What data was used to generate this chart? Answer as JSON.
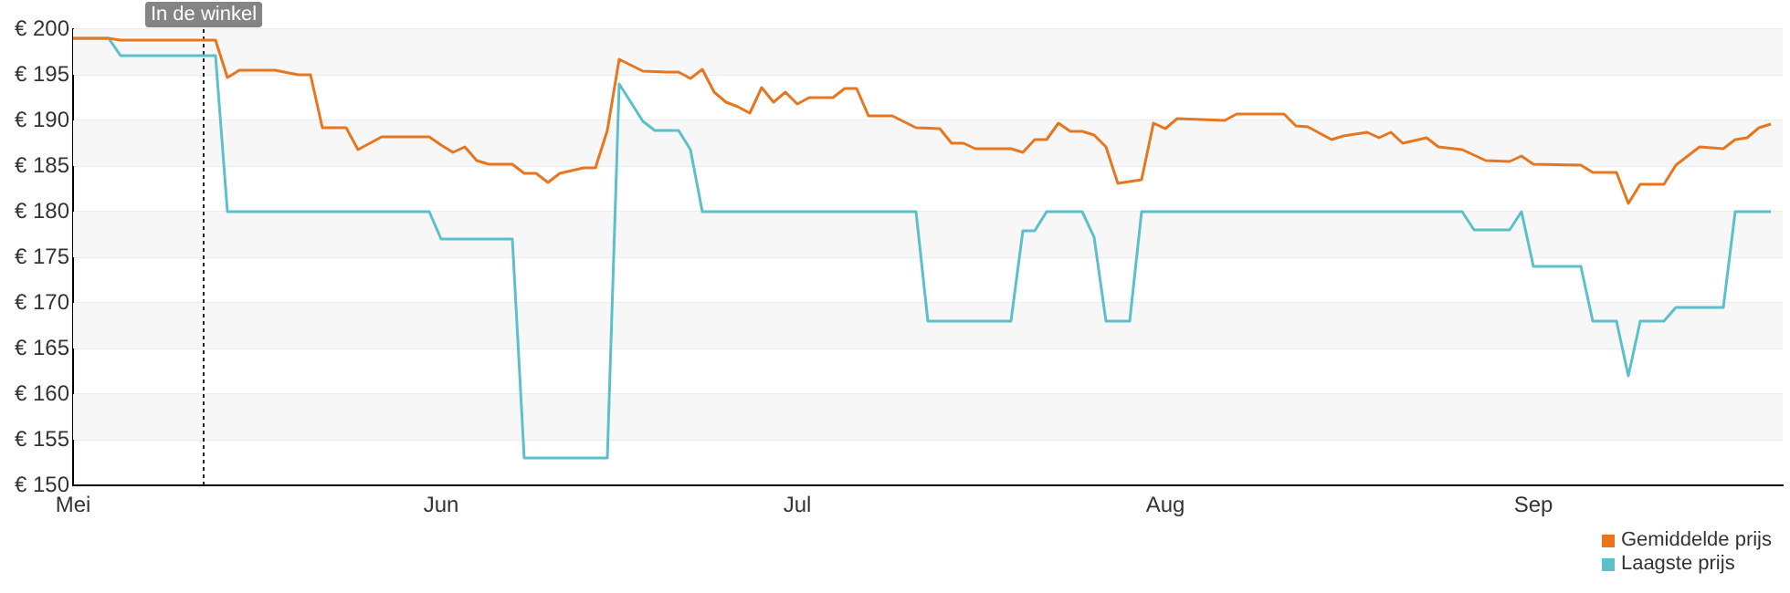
{
  "chart_data": {
    "type": "line",
    "x": [
      "--05-01",
      "--05-04",
      "--05-05",
      "--05-13",
      "--05-14",
      "--05-15",
      "--05-18",
      "--05-20",
      "--05-21",
      "--05-22",
      "--05-24",
      "--05-25",
      "--05-27",
      "--05-31",
      "--06-01",
      "--06-02",
      "--06-03",
      "--06-04",
      "--06-05",
      "--06-07",
      "--06-08",
      "--06-09",
      "--06-10",
      "--06-11",
      "--06-12",
      "--06-13",
      "--06-14",
      "--06-15",
      "--06-16",
      "--06-18",
      "--06-20",
      "--06-21",
      "--06-22",
      "--06-23",
      "--06-24",
      "--06-25",
      "--06-26",
      "--06-27",
      "--06-28",
      "--06-29",
      "--06-30",
      "--07-01",
      "--07-02",
      "--07-04",
      "--07-05",
      "--07-06",
      "--07-07",
      "--07-09",
      "--07-11",
      "--07-13",
      "--07-14",
      "--07-15",
      "--07-16",
      "--07-19",
      "--07-20",
      "--07-21",
      "--07-22",
      "--07-23",
      "--07-24",
      "--07-25",
      "--07-26",
      "--07-27",
      "--07-28",
      "--07-30",
      "--07-31",
      "--08-01",
      "--08-02",
      "--08-06",
      "--08-07",
      "--08-11",
      "--08-12",
      "--08-13",
      "--08-15",
      "--08-16",
      "--08-18",
      "--08-19",
      "--08-20",
      "--08-21",
      "--08-23",
      "--08-24",
      "--08-26",
      "--08-28",
      "--08-30",
      "--08-31",
      "--09-01",
      "--09-05",
      "--09-06",
      "--09-08",
      "--09-09",
      "--09-10",
      "--09-12",
      "--09-13",
      "--09-15",
      "--09-17",
      "--09-18",
      "--09-19",
      "--09-20",
      "--09-21"
    ],
    "series": [
      {
        "name": "Gemiddelde prijs",
        "color": "#e8761f",
        "values": [
          199,
          199,
          198.8,
          198.8,
          194.7,
          195.5,
          195.5,
          195,
          195,
          189.2,
          189.2,
          186.8,
          188.2,
          188.2,
          187.3,
          186.5,
          187.1,
          185.6,
          185.2,
          185.2,
          184.2,
          184.2,
          183.2,
          184.2,
          184.5,
          184.8,
          184.8,
          188.9,
          196.7,
          195.4,
          195.3,
          195.3,
          194.6,
          195.6,
          193.1,
          192,
          191.5,
          190.8,
          193.6,
          192,
          193.1,
          191.8,
          192.5,
          192.5,
          193.5,
          193.5,
          190.5,
          190.5,
          189.2,
          189.1,
          187.5,
          187.5,
          186.9,
          186.9,
          186.5,
          187.9,
          187.9,
          189.7,
          188.8,
          188.8,
          188.4,
          187.1,
          183.1,
          183.5,
          189.7,
          189.1,
          190.2,
          190,
          190.7,
          190.7,
          189.4,
          189.3,
          187.9,
          188.3,
          188.7,
          188.1,
          188.7,
          187.5,
          188.1,
          187.1,
          186.8,
          185.6,
          185.5,
          186.1,
          185.2,
          185.1,
          184.3,
          184.3,
          180.9,
          183,
          183,
          185.1,
          187.1,
          186.9,
          187.9,
          188.1,
          189.2,
          189.6
        ]
      },
      {
        "name": "Laagste prijs",
        "color": "#5bc0c9",
        "x": [
          "--05-01",
          "--05-04",
          "--05-05",
          "--05-13",
          "--05-14",
          "--05-31",
          "--06-01",
          "--06-07",
          "--06-08",
          "--06-15",
          "--06-16",
          "--06-18",
          "--06-19",
          "--06-21",
          "--06-22",
          "--06-23",
          "--07-11",
          "--07-12",
          "--07-19",
          "--07-20",
          "--07-21",
          "--07-22",
          "--07-25",
          "--07-26",
          "--07-27",
          "--07-29",
          "--07-30",
          "--08-26",
          "--08-27",
          "--08-30",
          "--08-31",
          "--09-01",
          "--09-05",
          "--09-06",
          "--09-08",
          "--09-09",
          "--09-10",
          "--09-12",
          "--09-13",
          "--09-17",
          "--09-18",
          "--09-21"
        ],
        "values": [
          199,
          199,
          197.1,
          197.1,
          180,
          180,
          177,
          177,
          153,
          153,
          194,
          189.9,
          188.9,
          188.9,
          186.8,
          180,
          180,
          168,
          168,
          177.9,
          177.9,
          180,
          180,
          177.2,
          168,
          168,
          180,
          180,
          178,
          178,
          180,
          174,
          174,
          168,
          168,
          162,
          168,
          168,
          169.5,
          169.5,
          180,
          180
        ]
      }
    ],
    "xlim": [
      "--05-01",
      "--09-22"
    ],
    "xticks": [
      {
        "value": "--05-01",
        "label": "Mei"
      },
      {
        "value": "--06-01",
        "label": "Jun"
      },
      {
        "value": "--07-01",
        "label": "Jul"
      },
      {
        "value": "--08-01",
        "label": "Aug"
      },
      {
        "value": "--09-01",
        "label": "Sep"
      }
    ],
    "ylim": [
      150,
      200
    ],
    "yticks": [
      {
        "value": 150,
        "label": "€ 150"
      },
      {
        "value": 155,
        "label": "€ 155"
      },
      {
        "value": 160,
        "label": "€ 160"
      },
      {
        "value": 165,
        "label": "€ 165"
      },
      {
        "value": 170,
        "label": "€ 170"
      },
      {
        "value": 175,
        "label": "€ 175"
      },
      {
        "value": 180,
        "label": "€ 180"
      },
      {
        "value": 185,
        "label": "€ 185"
      },
      {
        "value": 190,
        "label": "€ 190"
      },
      {
        "value": 195,
        "label": "€ 195"
      },
      {
        "value": 200,
        "label": "€ 200"
      }
    ],
    "ref_lines": [
      {
        "axis": "x",
        "value": "--05-12",
        "label": "In de winkel",
        "line_style": "dotted",
        "color": "#222222"
      }
    ],
    "grid": "y",
    "legend": "bottom right",
    "marker": "none"
  }
}
